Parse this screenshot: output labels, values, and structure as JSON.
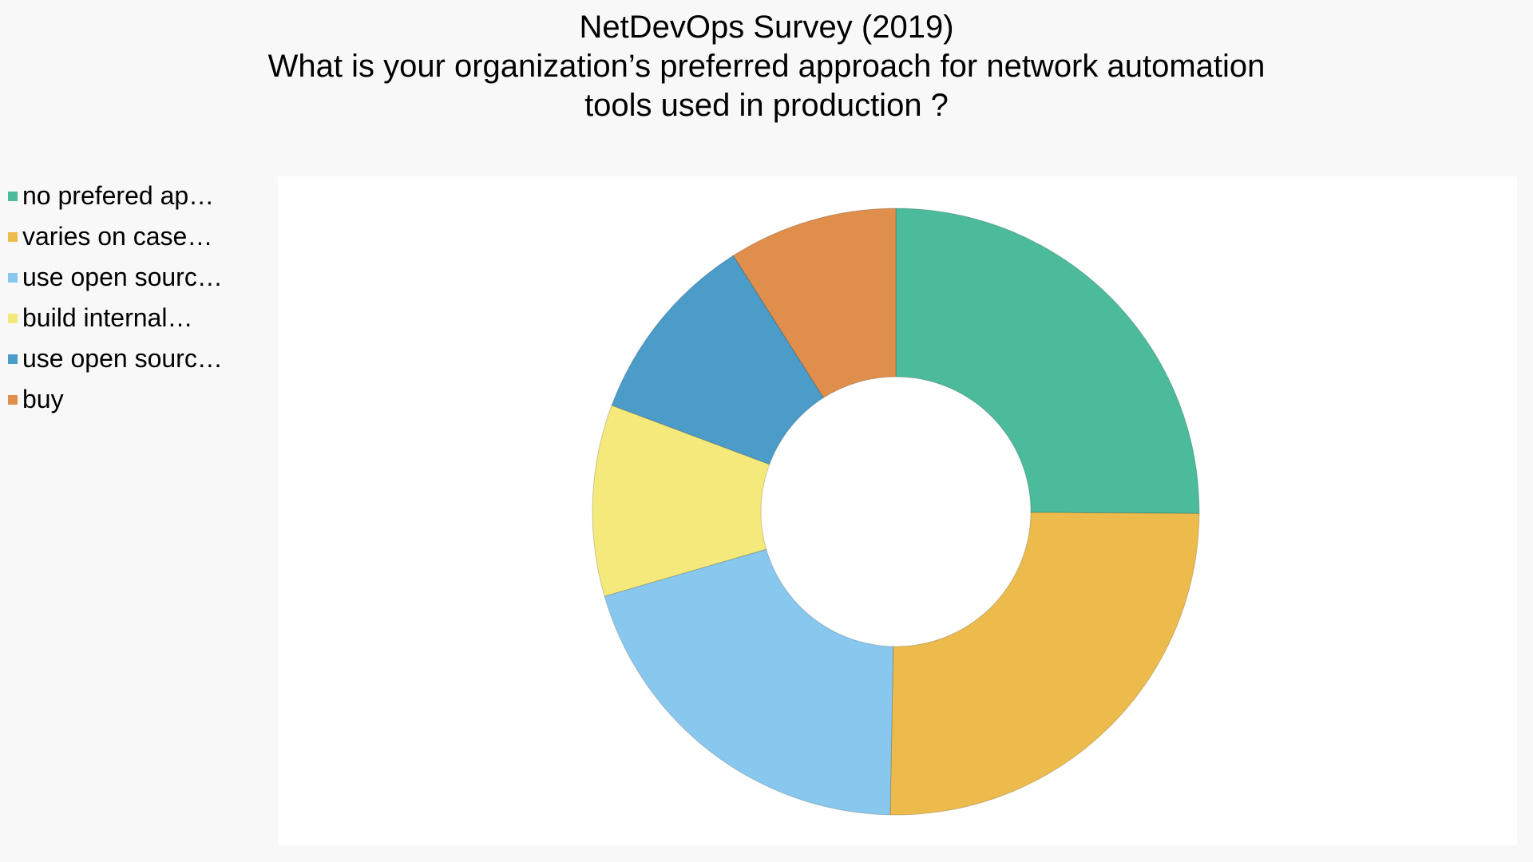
{
  "chart_data": {
    "type": "pie",
    "variant": "donut",
    "title": {
      "line1": "NetDevOps Survey (2019)",
      "line2": "What is your organization’s preferred approach for network automation",
      "line3": "tools used in production ?"
    },
    "legend_position": "left",
    "categories": [
      "no prefered ap…",
      "varies on case…",
      "use open sourc…",
      "build internal…",
      "use open sourc…",
      "buy"
    ],
    "values": [
      25.1,
      25.2,
      20.2,
      10.2,
      10.3,
      9.0
    ],
    "unit": "%",
    "colors": [
      "#4cbb9b",
      "#ecbb4b",
      "#88c8ee",
      "#f4e97a",
      "#4b9cc8",
      "#e08e4b"
    ]
  }
}
